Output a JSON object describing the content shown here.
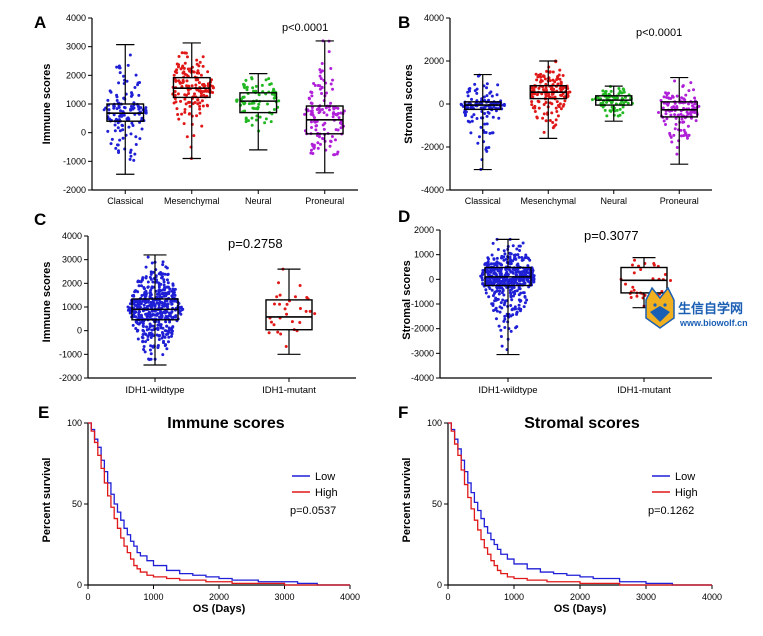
{
  "panels": {
    "A": "A",
    "B": "B",
    "C": "C",
    "D": "D",
    "E": "E",
    "F": "F"
  },
  "watermark": {
    "title": "生信自学网",
    "url": "www.biowolf.cn"
  },
  "colors": {
    "blue": "#1f1fd6",
    "red": "#e01818",
    "green": "#22b822",
    "purple": "#b020d8"
  },
  "chart_data": [
    {
      "id": "A",
      "type": "box",
      "ylabel": "Immune scores",
      "annotation": "p<0.0001",
      "ylim": [
        -2000,
        4000
      ],
      "yticks": [
        -2000,
        -1000,
        0,
        1000,
        2000,
        3000,
        4000
      ],
      "categories": [
        "Classical",
        "Mesenchymal",
        "Neural",
        "Proneural"
      ],
      "point_colors": [
        "#1f1fd6",
        "#e01818",
        "#22b822",
        "#b020d8"
      ],
      "boxes": [
        {
          "min": -1450,
          "q1": 400,
          "median": 680,
          "q3": 1000,
          "max": 3070,
          "n": 140
        },
        {
          "min": -900,
          "q1": 1230,
          "median": 1550,
          "q3": 1920,
          "max": 3130,
          "n": 160
        },
        {
          "min": -600,
          "q1": 700,
          "median": 1100,
          "q3": 1390,
          "max": 2060,
          "n": 80
        },
        {
          "min": -1400,
          "q1": -40,
          "median": 450,
          "q3": 930,
          "max": 3200,
          "n": 130
        }
      ]
    },
    {
      "id": "B",
      "type": "box",
      "ylabel": "Stromal scores",
      "annotation": "p<0.0001",
      "ylim": [
        -4000,
        4000
      ],
      "yticks": [
        -4000,
        -2000,
        0,
        2000,
        4000
      ],
      "categories": [
        "Classical",
        "Mesenchymal",
        "Neural",
        "Proneural"
      ],
      "point_colors": [
        "#1f1fd6",
        "#e01818",
        "#22b822",
        "#b020d8"
      ],
      "boxes": [
        {
          "min": -3050,
          "q1": -250,
          "median": -50,
          "q3": 100,
          "max": 1370,
          "n": 140
        },
        {
          "min": -1600,
          "q1": 250,
          "median": 550,
          "q3": 850,
          "max": 2000,
          "n": 160
        },
        {
          "min": -800,
          "q1": -50,
          "median": 180,
          "q3": 380,
          "max": 830,
          "n": 80
        },
        {
          "min": -2800,
          "q1": -600,
          "median": -270,
          "q3": 100,
          "max": 1230,
          "n": 130
        }
      ]
    },
    {
      "id": "C",
      "type": "box",
      "ylabel": "Immune scores",
      "annotation": "p=0.2758",
      "ylim": [
        -2000,
        4000
      ],
      "yticks": [
        -2000,
        -1000,
        0,
        1000,
        2000,
        3000,
        4000
      ],
      "categories": [
        "IDH1-wildtype",
        "IDH1-mutant"
      ],
      "point_colors": [
        "#1f1fd6",
        "#e01818"
      ],
      "boxes": [
        {
          "min": -1450,
          "q1": 460,
          "median": 900,
          "q3": 1340,
          "max": 3200,
          "n": 480
        },
        {
          "min": -1000,
          "q1": 40,
          "median": 580,
          "q3": 1300,
          "max": 2600,
          "n": 30
        }
      ]
    },
    {
      "id": "D",
      "type": "box",
      "ylabel": "Stromal scores",
      "annotation": "p=0.3077",
      "ylim": [
        -4000,
        2000
      ],
      "yticks": [
        -4000,
        -3000,
        -2000,
        -1000,
        0,
        1000,
        2000
      ],
      "categories": [
        "IDH1-wildtype",
        "IDH1-mutant"
      ],
      "point_colors": [
        "#1f1fd6",
        "#e01818"
      ],
      "boxes": [
        {
          "min": -3050,
          "q1": -250,
          "median": 100,
          "q3": 480,
          "max": 1620,
          "n": 480
        },
        {
          "min": -1150,
          "q1": -550,
          "median": -40,
          "q3": 480,
          "max": 880,
          "n": 30
        }
      ]
    },
    {
      "id": "E",
      "type": "line",
      "title": "Immune scores",
      "xlabel": "OS (Days)",
      "ylabel": "Percent survival",
      "annotation": "p=0.0537",
      "xlim": [
        0,
        4000
      ],
      "ylim": [
        0,
        100
      ],
      "xticks": [
        0,
        1000,
        2000,
        3000,
        4000
      ],
      "yticks": [
        0,
        50,
        100
      ],
      "legend_position": "right",
      "series": [
        {
          "name": "Low",
          "color": "#1f1fd6",
          "points": [
            [
              0,
              100
            ],
            [
              50,
              96
            ],
            [
              100,
              90
            ],
            [
              150,
              85
            ],
            [
              200,
              77
            ],
            [
              250,
              70
            ],
            [
              300,
              63
            ],
            [
              350,
              56
            ],
            [
              400,
              50
            ],
            [
              450,
              45
            ],
            [
              500,
              40
            ],
            [
              550,
              35
            ],
            [
              600,
              31
            ],
            [
              650,
              27
            ],
            [
              700,
              24
            ],
            [
              750,
              20
            ],
            [
              800,
              18
            ],
            [
              900,
              15
            ],
            [
              1000,
              12
            ],
            [
              1200,
              9
            ],
            [
              1400,
              7
            ],
            [
              1600,
              6
            ],
            [
              1800,
              5
            ],
            [
              2000,
              4
            ],
            [
              2200,
              3
            ],
            [
              2600,
              2
            ],
            [
              3200,
              1
            ],
            [
              3500,
              0
            ],
            [
              4000,
              0
            ]
          ]
        },
        {
          "name": "High",
          "color": "#e01818",
          "points": [
            [
              0,
              100
            ],
            [
              50,
              95
            ],
            [
              100,
              88
            ],
            [
              150,
              80
            ],
            [
              200,
              72
            ],
            [
              250,
              63
            ],
            [
              300,
              55
            ],
            [
              350,
              48
            ],
            [
              400,
              41
            ],
            [
              450,
              35
            ],
            [
              500,
              29
            ],
            [
              550,
              24
            ],
            [
              600,
              20
            ],
            [
              650,
              16
            ],
            [
              700,
              12
            ],
            [
              750,
              10
            ],
            [
              800,
              8
            ],
            [
              900,
              6
            ],
            [
              1000,
              5
            ],
            [
              1200,
              4
            ],
            [
              1400,
              3
            ],
            [
              1800,
              2
            ],
            [
              2200,
              1
            ],
            [
              2600,
              1
            ],
            [
              3000,
              0
            ],
            [
              4000,
              0
            ]
          ]
        }
      ]
    },
    {
      "id": "F",
      "type": "line",
      "title": "Stromal scores",
      "xlabel": "OS (Days)",
      "ylabel": "Percent survival",
      "annotation": "p=0.1262",
      "xlim": [
        0,
        4000
      ],
      "ylim": [
        0,
        100
      ],
      "xticks": [
        0,
        1000,
        2000,
        3000,
        4000
      ],
      "yticks": [
        0,
        50,
        100
      ],
      "legend_position": "right",
      "series": [
        {
          "name": "Low",
          "color": "#1f1fd6",
          "points": [
            [
              0,
              100
            ],
            [
              50,
              96
            ],
            [
              100,
              90
            ],
            [
              150,
              84
            ],
            [
              200,
              77
            ],
            [
              250,
              70
            ],
            [
              300,
              63
            ],
            [
              350,
              57
            ],
            [
              400,
              51
            ],
            [
              450,
              46
            ],
            [
              500,
              41
            ],
            [
              550,
              36
            ],
            [
              600,
              32
            ],
            [
              650,
              28
            ],
            [
              700,
              25
            ],
            [
              750,
              22
            ],
            [
              800,
              19
            ],
            [
              900,
              16
            ],
            [
              1000,
              13
            ],
            [
              1200,
              10
            ],
            [
              1400,
              8
            ],
            [
              1600,
              7
            ],
            [
              1800,
              6
            ],
            [
              2000,
              5
            ],
            [
              2200,
              4
            ],
            [
              2600,
              2
            ],
            [
              3000,
              1
            ],
            [
              3400,
              0
            ],
            [
              4000,
              0
            ]
          ]
        },
        {
          "name": "High",
          "color": "#e01818",
          "points": [
            [
              0,
              100
            ],
            [
              50,
              95
            ],
            [
              100,
              87
            ],
            [
              150,
              80
            ],
            [
              200,
              71
            ],
            [
              250,
              62
            ],
            [
              300,
              54
            ],
            [
              350,
              47
            ],
            [
              400,
              40
            ],
            [
              450,
              34
            ],
            [
              500,
              28
            ],
            [
              550,
              23
            ],
            [
              600,
              19
            ],
            [
              650,
              15
            ],
            [
              700,
              12
            ],
            [
              750,
              9
            ],
            [
              800,
              7
            ],
            [
              900,
              5
            ],
            [
              1000,
              4
            ],
            [
              1200,
              3
            ],
            [
              1500,
              2
            ],
            [
              2000,
              1
            ],
            [
              2600,
              0
            ],
            [
              4000,
              0
            ]
          ]
        }
      ]
    }
  ]
}
